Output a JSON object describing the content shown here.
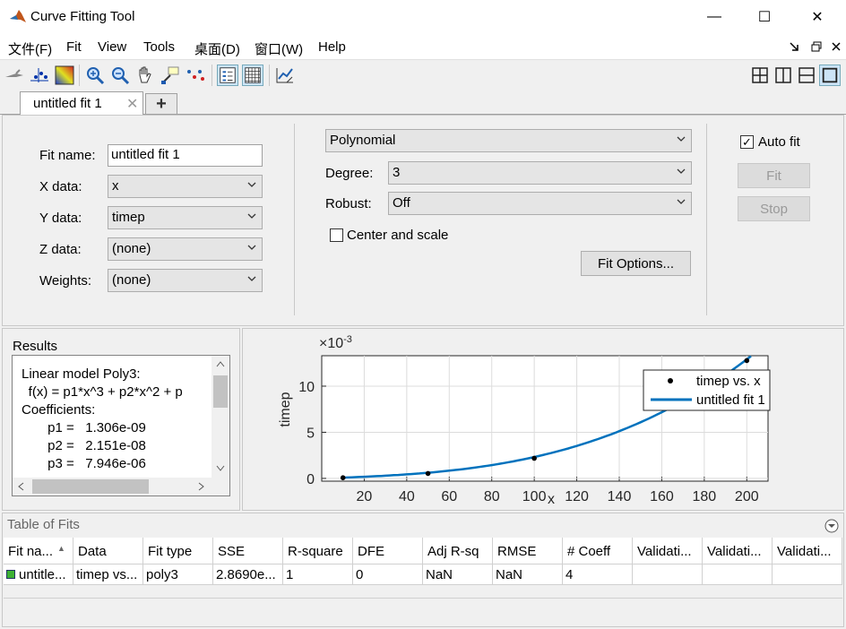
{
  "window": {
    "title": "Curve Fitting Tool",
    "minimize": "—",
    "maximize": "☐",
    "close": "✕"
  },
  "menu": [
    "文件(F)",
    "Fit",
    "View",
    "Tools",
    "桌面(D)",
    "窗口(W)",
    "Help"
  ],
  "tabs": [
    {
      "label": "untitled fit 1",
      "close": "✕"
    }
  ],
  "tab_add": "+",
  "fit": {
    "name_label": "Fit name:",
    "name_value": "untitled fit 1",
    "x_label": "X data:",
    "x_value": "x",
    "y_label": "Y data:",
    "y_value": "timep",
    "z_label": "Z data:",
    "z_value": "(none)",
    "w_label": "Weights:",
    "w_value": "(none)",
    "type_value": "Polynomial",
    "degree_label": "Degree:",
    "degree_value": "3",
    "robust_label": "Robust:",
    "robust_value": "Off",
    "center_label": "Center and scale",
    "center_checked": false,
    "options_button": "Fit Options...",
    "autofit_label": "Auto fit",
    "autofit_checked": true,
    "fit_button": "Fit",
    "stop_button": "Stop"
  },
  "results": {
    "title": "Results",
    "lines": [
      "Linear model Poly3:",
      "    f(x) = p1*x^3 + p2*x^2 + p",
      "Coefficients:",
      "       p1 =   1.306e-09",
      "       p2 =   2.151e-08",
      "       p3 =   7.946e-06"
    ]
  },
  "chart_data": {
    "type": "scatter",
    "xlabel": "x",
    "ylabel": "timep",
    "exponent_label": "×10",
    "exponent_power": "-3",
    "xlim": [
      0,
      210
    ],
    "ylim": [
      -0.3,
      13.3
    ],
    "x_ticks": [
      20,
      40,
      60,
      80,
      100,
      120,
      140,
      160,
      180,
      200
    ],
    "y_ticks": [
      0,
      5,
      10
    ],
    "grid": true,
    "legend_position": "top-right",
    "series": [
      {
        "name": "timep vs. x",
        "kind": "points",
        "x": [
          10,
          50,
          100,
          200
        ],
        "y": [
          0.07,
          0.53,
          2.18,
          12.77
        ]
      },
      {
        "name": "untitled fit 1",
        "kind": "line",
        "coefficients": [
          1.306e-09,
          2.151e-08,
          7.946e-06,
          0
        ]
      }
    ]
  },
  "table": {
    "title": "Table of Fits",
    "columns": [
      "Fit na...",
      "Data",
      "Fit type",
      "SSE",
      "R-square",
      "DFE",
      "Adj R-sq",
      "RMSE",
      "# Coeff",
      "Validati...",
      "Validati...",
      "Validati..."
    ],
    "rows": [
      [
        "untitle...",
        "timep vs...",
        "poly3",
        "2.8690e...",
        "1",
        "0",
        "NaN",
        "NaN",
        "4",
        "",
        "",
        ""
      ]
    ]
  },
  "colors": {
    "fit_line": "#0072bd",
    "accent": "#0078d7"
  }
}
